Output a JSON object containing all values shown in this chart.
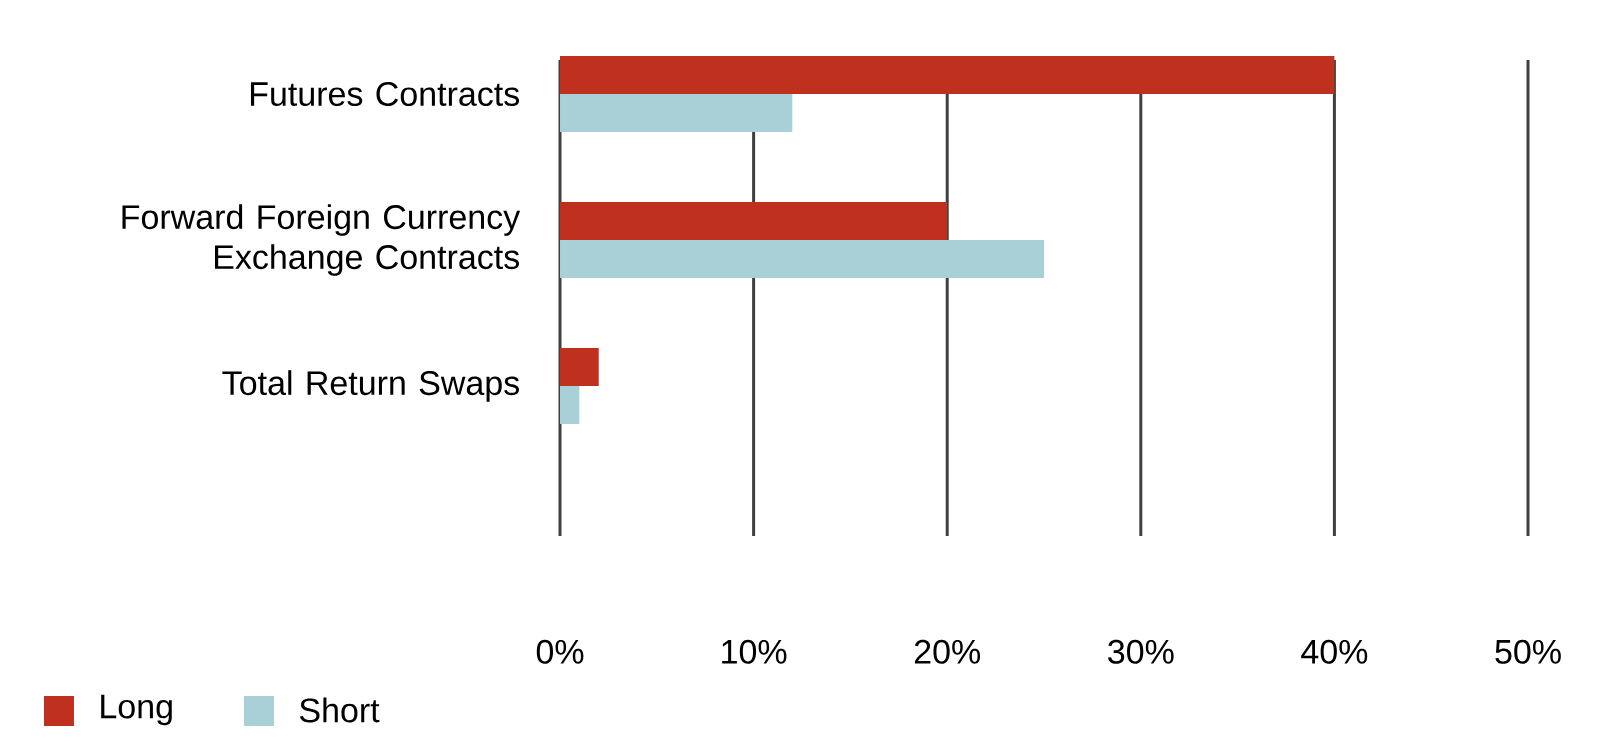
{
  "chart_data": {
    "type": "bar",
    "orientation": "horizontal",
    "categories": [
      "Futures Contracts",
      "Forward Foreign Currency Exchange Contracts",
      "Total Return Swaps"
    ],
    "series": [
      {
        "name": "Long",
        "color": "#c0301f",
        "values": [
          40,
          20,
          2
        ]
      },
      {
        "name": "Short",
        "color": "#a8d0d6",
        "values": [
          12,
          25,
          1
        ]
      }
    ],
    "xlim": [
      0,
      50
    ],
    "xticks": [
      {
        "value": 0,
        "label": "0%"
      },
      {
        "value": 10,
        "label": "10%"
      },
      {
        "value": 20,
        "label": "20%"
      },
      {
        "value": 30,
        "label": "30%"
      },
      {
        "value": 40,
        "label": "40%"
      },
      {
        "value": 50,
        "label": "50%"
      }
    ],
    "grid": "x",
    "legend": "bottom left"
  }
}
